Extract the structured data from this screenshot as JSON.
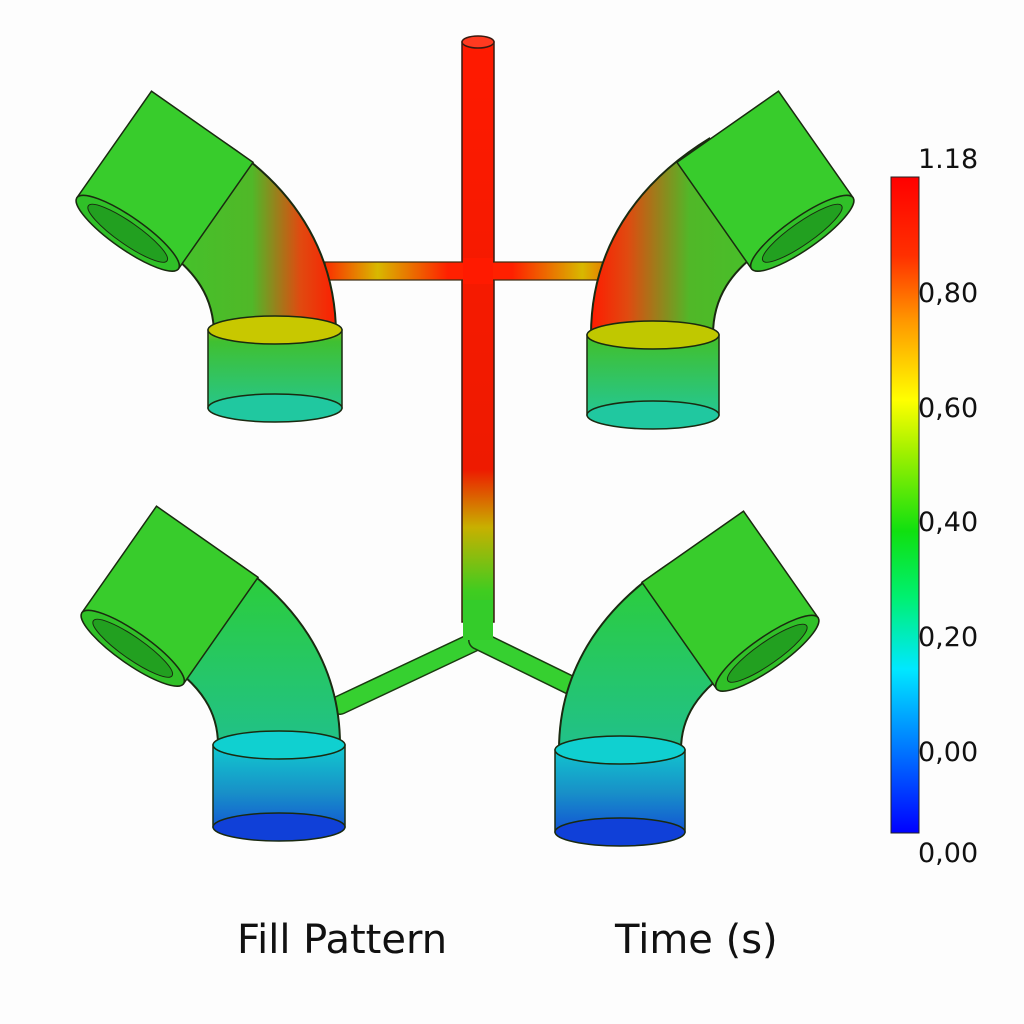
{
  "captions": {
    "left": "Fill Pattern",
    "right": "Time (s)"
  },
  "colorbar": {
    "max_label": "1.18",
    "ticks": [
      "0,80",
      "0,60",
      "0,40",
      "0,20",
      "0,00"
    ],
    "min_label": "0,00",
    "colors": [
      "#0000ff",
      "#0090ff",
      "#00e8ff",
      "#00f040",
      "#20e000",
      "#b0ff00",
      "#ffff00",
      "#ffa000",
      "#ff4000",
      "#ff0000"
    ]
  },
  "colors": {
    "hot": "#ff1a00",
    "mid": "#e8d000",
    "fill_green": "#2ed02a",
    "cool": "#1a5fd0"
  }
}
